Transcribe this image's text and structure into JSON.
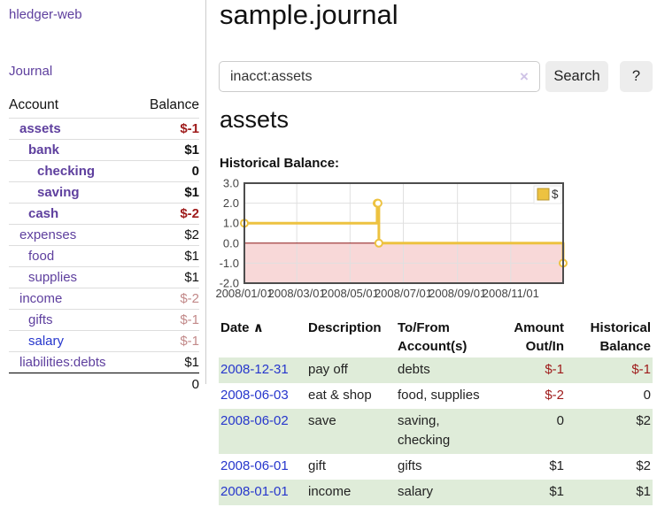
{
  "app": {
    "brand": "hledger-web"
  },
  "sidebar": {
    "journal_link": "Journal",
    "table": {
      "headers": {
        "account": "Account",
        "balance": "Balance"
      },
      "accounts": [
        {
          "name": "assets",
          "depth": 1,
          "bold": true,
          "balance": "$-1",
          "balance_style": "neg"
        },
        {
          "name": "bank",
          "depth": 2,
          "bold": true,
          "balance": "$1",
          "balance_style": "pos"
        },
        {
          "name": "checking",
          "depth": 3,
          "bold": true,
          "balance": "0",
          "balance_style": "pos"
        },
        {
          "name": "saving",
          "depth": 3,
          "bold": true,
          "balance": "$1",
          "balance_style": "pos"
        },
        {
          "name": "cash",
          "depth": 2,
          "bold": true,
          "balance": "$-2",
          "balance_style": "neg"
        },
        {
          "name": "expenses",
          "depth": 1,
          "bold": false,
          "balance": "$2",
          "balance_style": "pos"
        },
        {
          "name": "food",
          "depth": 2,
          "bold": false,
          "balance": "$1",
          "balance_style": "pos"
        },
        {
          "name": "supplies",
          "depth": 2,
          "bold": false,
          "balance": "$1",
          "balance_style": "pos"
        },
        {
          "name": "income",
          "depth": 1,
          "bold": false,
          "balance": "$-2",
          "balance_style": "neg-faded"
        },
        {
          "name": "gifts",
          "depth": 2,
          "bold": false,
          "balance": "$-1",
          "balance_style": "neg-faded"
        },
        {
          "name": "salary",
          "depth": 2,
          "bold": false,
          "link_style": "unvisited",
          "balance": "$-1",
          "balance_style": "neg-faded"
        },
        {
          "name": "liabilities:debts",
          "depth": 1,
          "bold": false,
          "balance": "$1",
          "balance_style": "pos"
        }
      ],
      "total": "0"
    }
  },
  "header": {
    "title": "sample.journal"
  },
  "search": {
    "value": "inacct:assets",
    "clear_icon": "×",
    "button_label": "Search",
    "help_label": "?"
  },
  "account_page": {
    "heading": "assets",
    "chart_label": "Historical Balance:"
  },
  "chart_data": {
    "type": "line",
    "title": "Historical Balance",
    "x_range": [
      "2008-01-01",
      "2008-12-31"
    ],
    "ylim": [
      -2,
      3
    ],
    "y_ticks": [
      3,
      2,
      1,
      0,
      -1,
      -2
    ],
    "x_ticks": [
      {
        "date": "2008-01-01",
        "label": "2008/01/01"
      },
      {
        "date": "2008-03-01",
        "label": "2008/03/01"
      },
      {
        "date": "2008-05-01",
        "label": "2008/05/01"
      },
      {
        "date": "2008-07-01",
        "label": "2008/07/01"
      },
      {
        "date": "2008-09-01",
        "label": "2008/09/01"
      },
      {
        "date": "2008-11-01",
        "label": "2008/11/01"
      }
    ],
    "series": [
      {
        "name": "$",
        "color": "#edc240",
        "step": true,
        "points": [
          [
            "2008-01-01",
            1
          ],
          [
            "2008-06-01",
            2
          ],
          [
            "2008-06-02",
            2
          ],
          [
            "2008-06-03",
            0
          ],
          [
            "2008-12-31",
            -1
          ]
        ]
      }
    ],
    "legend": {
      "label": "$",
      "position": "top-right"
    },
    "grid": true,
    "zero_line_color": "#8b1515",
    "negative_region_color": "#f8d8d8"
  },
  "register": {
    "headers": {
      "date": "Date",
      "sort_icon": "∧",
      "description": "Description",
      "account_l1": "To/From",
      "account_l2": "Account(s)",
      "amount_l1": "Amount",
      "amount_l2": "Out/In",
      "balance_l1": "Historical",
      "balance_l2": "Balance"
    },
    "rows": [
      {
        "date": "2008-12-31",
        "description": "pay off",
        "accounts": "debts",
        "amount": "$-1",
        "amount_style": "neg",
        "balance": "$-1",
        "balance_style": "neg"
      },
      {
        "date": "2008-06-03",
        "description": "eat & shop",
        "accounts": "food, supplies",
        "amount": "$-2",
        "amount_style": "neg",
        "balance": "0",
        "balance_style": "pos"
      },
      {
        "date": "2008-06-02",
        "description": "save",
        "accounts": "saving, checking",
        "amount": "0",
        "amount_style": "pos",
        "balance": "$2",
        "balance_style": "pos"
      },
      {
        "date": "2008-06-01",
        "description": "gift",
        "accounts": "gifts",
        "amount": "$1",
        "amount_style": "pos",
        "balance": "$2",
        "balance_style": "pos"
      },
      {
        "date": "2008-01-01",
        "description": "income",
        "accounts": "salary",
        "amount": "$1",
        "amount_style": "pos",
        "balance": "$1",
        "balance_style": "pos"
      }
    ]
  },
  "colors": {
    "link_purple": "#5e3f9e",
    "link_blue": "#2636cc",
    "negative": "#9e1a1a",
    "negative_faded": "#c28989",
    "row_green": "#dfecd9",
    "series_yellow": "#edc240"
  }
}
